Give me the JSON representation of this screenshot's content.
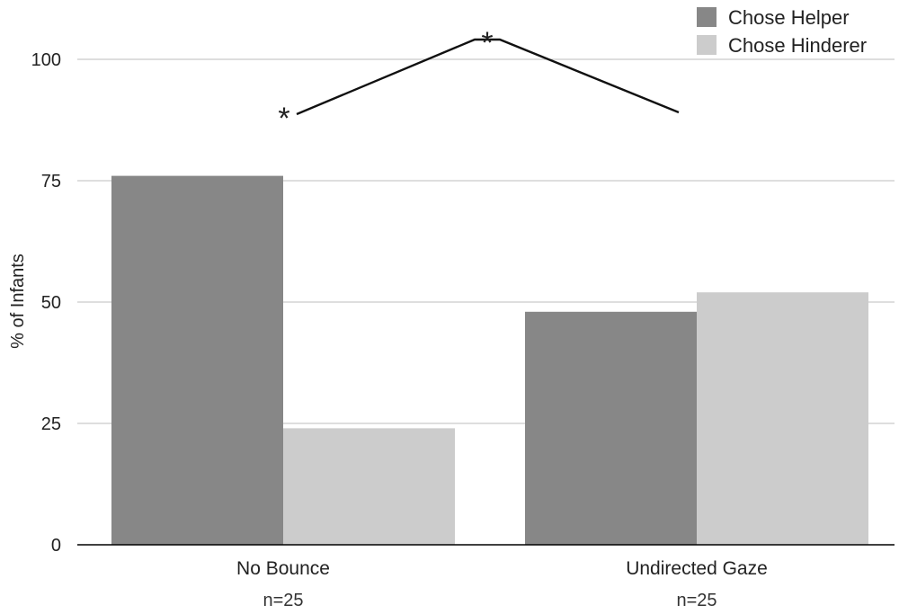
{
  "chart_data": {
    "type": "bar",
    "ylabel": "% of Infants",
    "xlabel": "",
    "ylim": [
      0,
      100
    ],
    "yticks": [
      0,
      25,
      50,
      75,
      100
    ],
    "grid": true,
    "legend_position": "top-right",
    "categories": [
      "No Bounce",
      "Undirected Gaze"
    ],
    "sample_sizes": [
      "n=25",
      "n=25"
    ],
    "series": [
      {
        "name": "Chose Helper",
        "color": "#878787",
        "values": [
          76,
          48
        ]
      },
      {
        "name": "Chose Hinderer",
        "color": "#cccccc",
        "values": [
          24,
          52
        ]
      }
    ],
    "annotation": {
      "type": "significance-bracket",
      "markers": [
        "*",
        "*"
      ]
    }
  }
}
